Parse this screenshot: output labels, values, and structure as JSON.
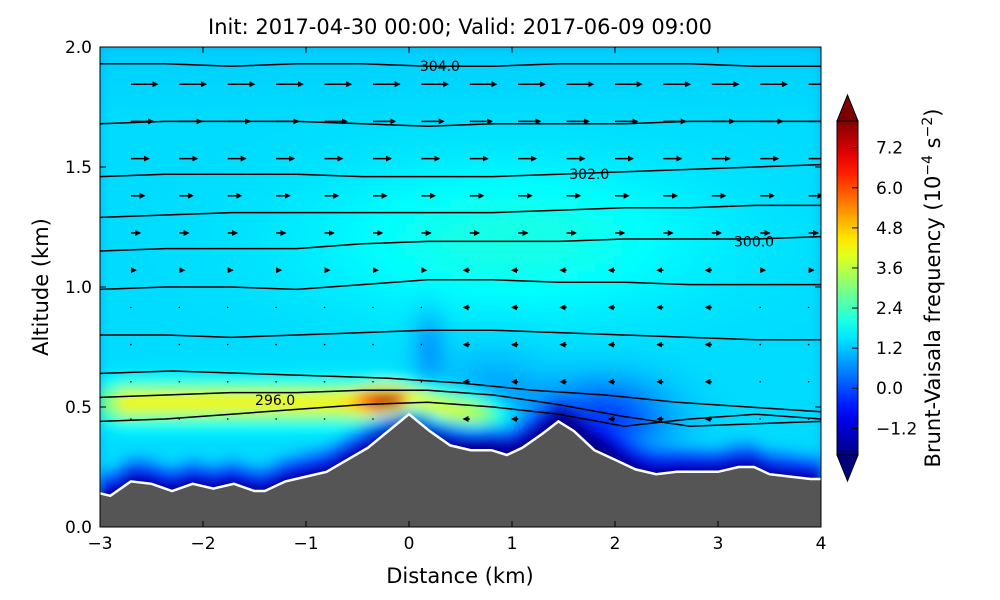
{
  "chart_data": {
    "type": "heatmap",
    "title": "Init: 2017-04-30 00:00; Valid: 2017-06-09 09:00",
    "xlabel": "Distance (km)",
    "ylabel": "Altitude (km)",
    "xlim": [
      -3,
      4
    ],
    "ylim": [
      0.0,
      2.0
    ],
    "x_ticks": [
      "−3",
      "−2",
      "−1",
      "0",
      "1",
      "2",
      "3",
      "4"
    ],
    "y_ticks": [
      "0.0",
      "0.5",
      "1.0",
      "1.5",
      "2.0"
    ],
    "colorbar": {
      "label": "Brunt-Vaisala frequency (10",
      "label_exp": "−4",
      "label_unit": " s",
      "label_unit_exp": "−2",
      "label_close": ")",
      "range": [
        -2.0,
        8.0
      ],
      "ticks": [
        "−1.2",
        "0.0",
        "1.2",
        "2.4",
        "3.6",
        "4.8",
        "6.0",
        "7.2"
      ],
      "tick_values": [
        -1.2,
        0.0,
        1.2,
        2.4,
        3.6,
        4.8,
        6.0,
        7.2
      ],
      "extend": "both",
      "colormap": "jet"
    },
    "terrain": {
      "x": [
        -3.0,
        -2.9,
        -2.7,
        -2.5,
        -2.3,
        -2.1,
        -1.9,
        -1.7,
        -1.5,
        -1.4,
        -1.2,
        -1.0,
        -0.8,
        -0.6,
        -0.4,
        -0.2,
        0.0,
        0.2,
        0.4,
        0.6,
        0.8,
        0.95,
        1.1,
        1.3,
        1.45,
        1.6,
        1.8,
        2.0,
        2.2,
        2.4,
        2.6,
        2.8,
        3.0,
        3.2,
        3.35,
        3.5,
        3.7,
        3.9,
        4.0
      ],
      "y": [
        0.14,
        0.13,
        0.19,
        0.18,
        0.15,
        0.18,
        0.16,
        0.18,
        0.15,
        0.15,
        0.19,
        0.21,
        0.23,
        0.28,
        0.33,
        0.4,
        0.47,
        0.4,
        0.34,
        0.32,
        0.32,
        0.3,
        0.33,
        0.39,
        0.44,
        0.4,
        0.32,
        0.28,
        0.24,
        0.22,
        0.23,
        0.23,
        0.23,
        0.25,
        0.25,
        0.22,
        0.21,
        0.2,
        0.2
      ],
      "fill": "#555555",
      "outline": "#ffffff"
    },
    "isentropes": [
      {
        "level": 296.0,
        "y": [
          0.44,
          0.45,
          0.47,
          0.49,
          0.51,
          0.52,
          0.5,
          0.47,
          0.42,
          0.45,
          0.47,
          0.45
        ]
      },
      {
        "level": null,
        "y": [
          0.54,
          0.55,
          0.56,
          0.56,
          0.57,
          0.57,
          0.55,
          0.51,
          0.46,
          0.42,
          0.43,
          0.44
        ]
      },
      {
        "level": null,
        "y": [
          0.64,
          0.65,
          0.64,
          0.63,
          0.62,
          0.6,
          0.57,
          0.55,
          0.52,
          0.5,
          0.48
        ]
      },
      {
        "level": null,
        "y": [
          0.8,
          0.8,
          0.79,
          0.8,
          0.81,
          0.82,
          0.82,
          0.81,
          0.8,
          0.79,
          0.78,
          0.78
        ]
      },
      {
        "level": null,
        "y": [
          0.99,
          1.0,
          1.0,
          0.99,
          1.01,
          1.03,
          1.03,
          1.02,
          1.02,
          1.01,
          1.01,
          1.01
        ]
      },
      {
        "level": 300.0,
        "y": [
          1.15,
          1.16,
          1.16,
          1.16,
          1.18,
          1.19,
          1.19,
          1.19,
          1.2,
          1.2,
          1.2,
          1.21
        ]
      },
      {
        "level": null,
        "y": [
          1.29,
          1.3,
          1.31,
          1.31,
          1.31,
          1.31,
          1.31,
          1.32,
          1.33,
          1.33,
          1.34,
          1.34
        ]
      },
      {
        "level": 302.0,
        "y": [
          1.46,
          1.47,
          1.47,
          1.47,
          1.46,
          1.46,
          1.46,
          1.47,
          1.48,
          1.49,
          1.5,
          1.51
        ]
      },
      {
        "level": null,
        "y": [
          1.68,
          1.69,
          1.69,
          1.69,
          1.68,
          1.67,
          1.68,
          1.68,
          1.68,
          1.69,
          1.69,
          1.69
        ]
      },
      {
        "level": 304.0,
        "y": [
          1.93,
          1.93,
          1.92,
          1.93,
          1.93,
          1.92,
          1.92,
          1.93,
          1.93,
          1.93,
          1.92,
          1.92
        ]
      }
    ],
    "contour_labels": [
      {
        "text": "304.0",
        "x": 0.3,
        "y": 1.92
      },
      {
        "text": "302.0",
        "x": 1.75,
        "y": 1.47
      },
      {
        "text": "300.0",
        "x": 3.35,
        "y": 1.19
      },
      {
        "text": "296.0",
        "x": -1.3,
        "y": 0.53
      }
    ]
  }
}
